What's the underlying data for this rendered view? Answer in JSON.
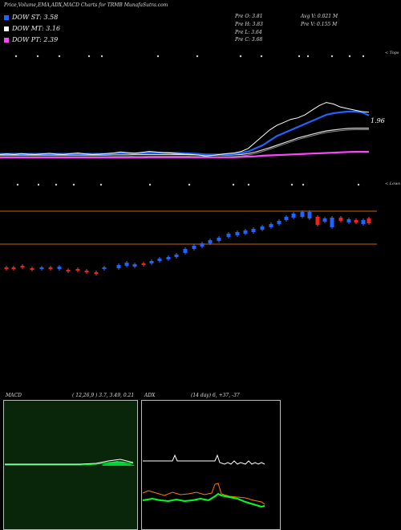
{
  "header": {
    "title": "Price,Volume,EMA,ADX,MACD Charts for TRMB MunafaSutra.com",
    "stats": [
      {
        "key": "Pre O: 3.81"
      },
      {
        "key": "Pre H: 3.83"
      },
      {
        "key": "Pre L: 3.64"
      },
      {
        "key": "Pre C: 3.68"
      },
      {
        "key": "Avg V: 0.021 M"
      },
      {
        "key": "Pre V: 0.155 M"
      }
    ]
  },
  "legend": [
    {
      "label": "DOW ST: 3.58",
      "color": "#1e64ff"
    },
    {
      "label": "DOW MT: 3.16",
      "color": "#ffffff"
    },
    {
      "label": "DOW PT: 2.39",
      "color": "#ff44ff"
    }
  ],
  "labels": {
    "tops": "< Tops",
    "lows": "< Lows",
    "price_marker": "1.96"
  },
  "chart_data": {
    "type": "line",
    "title": "Price,Volume,EMA,ADX,MACD Charts for TRMB MunafaSutra.com",
    "price_panel": {
      "close": [
        2.3,
        2.32,
        2.3,
        2.33,
        2.31,
        2.3,
        2.32,
        2.34,
        2.31,
        2.3,
        2.33,
        2.35,
        2.32,
        2.3,
        2.31,
        2.33,
        2.35,
        2.38,
        2.36,
        2.34,
        2.37,
        2.4,
        2.38,
        2.36,
        2.35,
        2.33,
        2.31,
        2.3,
        2.28,
        2.25,
        2.27,
        2.3,
        2.33,
        2.35,
        2.4,
        2.5,
        2.7,
        2.9,
        3.1,
        3.25,
        3.35,
        3.45,
        3.5,
        3.6,
        3.75,
        3.9,
        4.0,
        3.95,
        3.85,
        3.8,
        3.75,
        3.7,
        3.68
      ],
      "ema_fast": [
        2.32,
        2.32,
        2.32,
        2.32,
        2.32,
        2.32,
        2.32,
        2.32,
        2.32,
        2.32,
        2.32,
        2.32,
        2.32,
        2.32,
        2.32,
        2.32,
        2.33,
        2.34,
        2.34,
        2.34,
        2.35,
        2.36,
        2.36,
        2.36,
        2.36,
        2.35,
        2.34,
        2.33,
        2.32,
        2.3,
        2.3,
        2.3,
        2.31,
        2.32,
        2.35,
        2.4,
        2.5,
        2.6,
        2.75,
        2.9,
        3.0,
        3.1,
        3.2,
        3.3,
        3.4,
        3.5,
        3.6,
        3.65,
        3.68,
        3.7,
        3.7,
        3.68,
        3.58
      ],
      "ema_mid": [
        2.28,
        2.28,
        2.28,
        2.28,
        2.28,
        2.28,
        2.28,
        2.28,
        2.28,
        2.28,
        2.28,
        2.28,
        2.28,
        2.28,
        2.28,
        2.28,
        2.29,
        2.29,
        2.29,
        2.3,
        2.3,
        2.3,
        2.3,
        2.3,
        2.3,
        2.3,
        2.3,
        2.29,
        2.29,
        2.28,
        2.28,
        2.28,
        2.28,
        2.29,
        2.3,
        2.33,
        2.38,
        2.45,
        2.52,
        2.6,
        2.68,
        2.76,
        2.84,
        2.9,
        2.96,
        3.02,
        3.07,
        3.1,
        3.13,
        3.15,
        3.16,
        3.16,
        3.16
      ],
      "ema_slow": [
        2.2,
        2.2,
        2.2,
        2.2,
        2.2,
        2.2,
        2.2,
        2.2,
        2.2,
        2.2,
        2.2,
        2.2,
        2.2,
        2.2,
        2.2,
        2.2,
        2.2,
        2.2,
        2.2,
        2.2,
        2.2,
        2.21,
        2.21,
        2.21,
        2.21,
        2.21,
        2.21,
        2.21,
        2.21,
        2.21,
        2.21,
        2.21,
        2.21,
        2.21,
        2.22,
        2.23,
        2.24,
        2.26,
        2.27,
        2.28,
        2.29,
        2.3,
        2.31,
        2.32,
        2.33,
        2.34,
        2.35,
        2.36,
        2.37,
        2.38,
        2.39,
        2.39,
        2.39
      ]
    },
    "macd": {
      "label": "MACD",
      "params": "( 12,26,9 ) 3.7, 3.49, 0.21"
    },
    "adx": {
      "label": "ADX",
      "params": "(14 day) 6, +37, -37"
    }
  }
}
